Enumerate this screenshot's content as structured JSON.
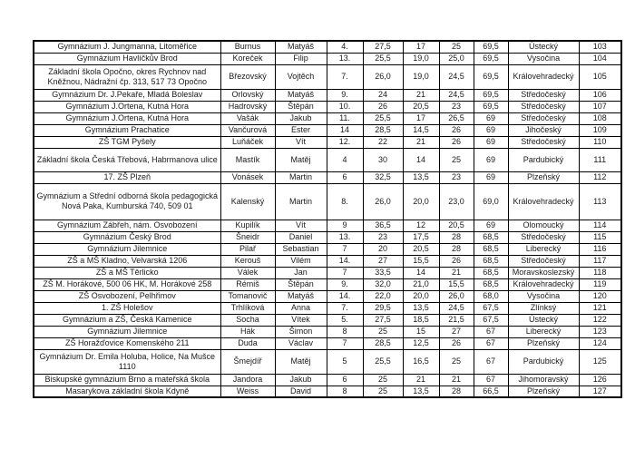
{
  "table": {
    "fields": [
      "school",
      "surname",
      "first-name",
      "rank",
      "score1",
      "score2",
      "score3",
      "total",
      "region",
      "entry-number"
    ],
    "rows": [
      [
        "Gymnázium J. Jungmanna, Litoměřice",
        "Burnus",
        "Matyáš",
        "4.",
        "27,5",
        "17",
        "25",
        "69,5",
        "Ústecký",
        "103"
      ],
      [
        "Gymnázium Havlíčkův Brod",
        "Koreček",
        "Filip",
        "13.",
        "25,5",
        "19,0",
        "25,0",
        "69,5",
        "Vysočina",
        "104"
      ],
      [
        "Základní škola Opočno, okres Rychnov nad Kněžnou, Nádražní čp. 313, 517 73 Opočno",
        "Březovský",
        "Vojtěch",
        "7.",
        "26,0",
        "19,0",
        "24,5",
        "69,5",
        "Královehradecký",
        "105"
      ],
      [
        "Gymnázium Dr. J.Pekaře, Mladá Boleslav",
        "Orlovský",
        "Matyáš",
        "9.",
        "24",
        "21",
        "24,5",
        "69,5",
        "Středočeský",
        "106"
      ],
      [
        "Gymnázium J.Ortena, Kutná Hora",
        "Hadrovský",
        "Štěpán",
        "10.",
        "26",
        "20,5",
        "23",
        "69,5",
        "Středočeský",
        "107"
      ],
      [
        "Gymnázium J.Ortena, Kutná Hora",
        "Vašák",
        "Jakub",
        "11.",
        "25,5",
        "17",
        "26,5",
        "69",
        "Středočeský",
        "108"
      ],
      [
        "Gymnázium Prachatice",
        "Vančurová",
        "Ester",
        "14",
        "28,5",
        "14,5",
        "26",
        "69",
        "Jihočeský",
        "109"
      ],
      [
        "ZŠ TGM Pyšely",
        "Luňáček",
        "Vít",
        "12.",
        "22",
        "21",
        "26",
        "69",
        "Středočeský",
        "110"
      ],
      [
        "Základní škola Česká Třebová, Habrmanova ulice",
        "Mastík",
        "Matěj",
        "4",
        "30",
        "14",
        "25",
        "69",
        "Pardubický",
        "111"
      ],
      [
        "17. ZŠ Plzeň",
        "Vonásek",
        "Martin",
        "6",
        "32,5",
        "13,5",
        "23",
        "69",
        "Plzeňský",
        "112"
      ],
      [
        "Gymnázium a Střední odborná škola pedagogická Nová Paka, Kumburská 740, 509 01",
        "Kalenský",
        "Martin",
        "8.",
        "26,0",
        "20,0",
        "23,0",
        "69,0",
        "Královehradecký",
        "113"
      ],
      [
        "Gymnázium Zábřeh, nám. Osvobození",
        "Kupilík",
        "Vít",
        "9",
        "36,5",
        "12",
        "20,5",
        "69",
        "Olomoucký",
        "114"
      ],
      [
        "Gymnázium Český Brod",
        "Šneidr",
        "Daniel",
        "13.",
        "23",
        "17,5",
        "28",
        "68,5",
        "Středočeský",
        "115"
      ],
      [
        "Gymnázium Jilemnice",
        "Pilař",
        "Sebastian",
        "7",
        "20",
        "20,5",
        "28",
        "68,5",
        "Liberecký",
        "116"
      ],
      [
        "ZŠ a MŠ Kladno, Velvarská 1206",
        "Kerouš",
        "Vilém",
        "14.",
        "27",
        "15,5",
        "26",
        "68,5",
        "Středočeský",
        "117"
      ],
      [
        "ZŠ a MŠ Těrlicko",
        "Válek",
        "Jan",
        "7",
        "33,5",
        "14",
        "21",
        "68,5",
        "Moravskoslezský",
        "118"
      ],
      [
        "ZŠ M. Horákové, 500 06 HK, M. Horákové 258",
        "Rémiš",
        "Štěpán",
        "9.",
        "32,0",
        "21,0",
        "15,5",
        "68,5",
        "Královehradecký",
        "119"
      ],
      [
        "ZŠ Osvobození, Pelhřimov",
        "Tomanovič",
        "Matyáš",
        "14.",
        "22,0",
        "20,0",
        "26,0",
        "68,0",
        "Vysočina",
        "120"
      ],
      [
        "1. ZŠ Holešov",
        "Trhlíková",
        "Anna",
        "7.",
        "29,5",
        "13,5",
        "24,5",
        "67,5",
        "Zlínksý",
        "121"
      ],
      [
        "Gymnázium a ZŠ, Česká Kamenice",
        "Socha",
        "Vítek",
        "5.",
        "27,5",
        "18,5",
        "21,5",
        "67,5",
        "Ústecký",
        "122"
      ],
      [
        "Gymnázium Jilemnice",
        "Hák",
        "Šimon",
        "8",
        "25",
        "15",
        "27",
        "67",
        "Liberecký",
        "123"
      ],
      [
        "ZŠ Horažďovice Komenského 211",
        "Duda",
        "Václav",
        "7",
        "28,5",
        "12,5",
        "26",
        "67",
        "Plzeňský",
        "124"
      ],
      [
        "Gymnázium Dr. Emila Holuba, Holice, Na Mušce 1110",
        "Šmejdíř",
        "Matěj",
        "5",
        "25,5",
        "16,5",
        "25",
        "67",
        "Pardubický",
        "125"
      ],
      [
        "Biskupské gymnázium Brno a mateřská škola",
        "Jandora",
        "Jakub",
        "6",
        "25",
        "21",
        "21",
        "67",
        "Jihomoravský",
        "126"
      ],
      [
        "Masarykova základní škola Kdyně",
        "Weiss",
        "David",
        "8",
        "25",
        "13,5",
        "28",
        "66,5",
        "Plzeňský",
        "127"
      ]
    ]
  }
}
